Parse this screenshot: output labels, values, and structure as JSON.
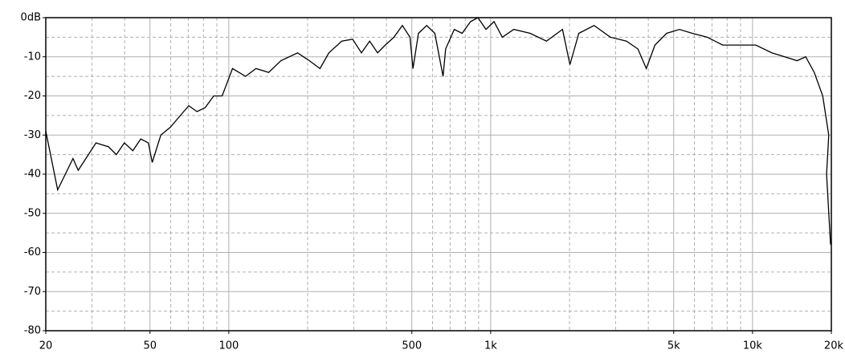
{
  "chart_data": {
    "type": "line",
    "log_x": true,
    "grid": true,
    "color": "#000000",
    "x": [
      20,
      22.2,
      25.4,
      26.6,
      29.1,
      31.1,
      34.7,
      37.2,
      39.9,
      43,
      46.1,
      49.3,
      51,
      55,
      59.8,
      65.3,
      70.3,
      75.6,
      81.2,
      87.6,
      94.3,
      103.3,
      115.9,
      127,
      142,
      158,
      183,
      203,
      223,
      241,
      270,
      297,
      321,
      345,
      370,
      396,
      427,
      460,
      492,
      505,
      530,
      570,
      612,
      658,
      673,
      726,
      778,
      838,
      894,
      960,
      1030,
      1108,
      1225,
      1416,
      1633,
      1881,
      2008,
      2171,
      2483,
      2867,
      3300,
      3650,
      3930,
      4240,
      4700,
      5260,
      5890,
      6720,
      7690,
      8880,
      10290,
      11860,
      13270,
      14800,
      15960,
      17210,
      18540,
      19550,
      19180,
      19860
    ],
    "values": [
      -29,
      -44,
      -36,
      -39,
      -35,
      -32,
      -33,
      -35,
      -32,
      -34,
      -31,
      -32,
      -37,
      -30,
      -28,
      -25,
      -22.5,
      -24,
      -23,
      -20,
      -20,
      -13,
      -15,
      -13,
      -14,
      -11,
      -9,
      -11,
      -13,
      -9,
      -6,
      -5.5,
      -9,
      -6,
      -9,
      -7,
      -5,
      -2,
      -5,
      -13,
      -4,
      -2,
      -4,
      -15,
      -8,
      -3,
      -4,
      -1,
      0,
      -3,
      -1,
      -5,
      -3,
      -4,
      -6,
      -3,
      -12,
      -4,
      -2,
      -5,
      -6,
      -8,
      -13,
      -7,
      -4,
      -3,
      -4,
      -5,
      -7,
      -7,
      -7,
      -9,
      -10,
      -11,
      -10,
      -14,
      -20,
      -30,
      -40,
      -58
    ],
    "xlim": [
      20,
      20000
    ],
    "xticks": [
      20,
      50,
      100,
      500,
      {
        "value": 1000,
        "label": "1k"
      },
      {
        "value": 5000,
        "label": "5k"
      },
      {
        "value": 10000,
        "label": "10k"
      },
      {
        "value": 20000,
        "label": "20k"
      }
    ],
    "xminorticks": [
      30,
      40,
      60,
      70,
      80,
      90,
      200,
      300,
      400,
      600,
      700,
      800,
      900,
      2000,
      3000,
      4000,
      6000,
      7000,
      8000,
      9000
    ],
    "ylim": [
      -80,
      0
    ],
    "yticks": [
      {
        "value": 0,
        "label": "0dB"
      },
      -10,
      -20,
      -30,
      -40,
      -50,
      -60,
      -70,
      -80
    ],
    "yminorticks": [
      -5,
      -15,
      -25,
      -35,
      -45,
      -55,
      -65,
      -75
    ]
  }
}
